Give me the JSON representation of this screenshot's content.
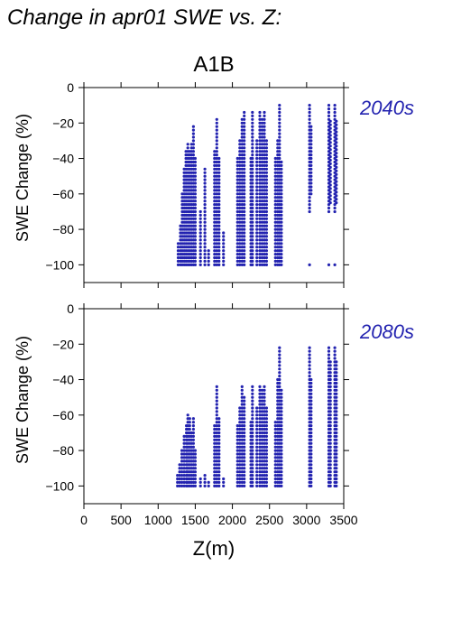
{
  "figure": {
    "title": "Change in apr01 SWE vs. Z:",
    "scenario": "A1B",
    "xlabel": "Z(m)",
    "ylabel": "SWE Change (%)",
    "series_color": "#2323b0"
  },
  "chart_data": [
    {
      "type": "scatter",
      "period": "2040s",
      "xlabel": "",
      "ylabel": "SWE Change (%)",
      "xlim": [
        0,
        3500
      ],
      "ylim": [
        -110,
        0
      ],
      "yticks": [
        0,
        -20,
        -40,
        -60,
        -80,
        -100
      ],
      "xticks": [
        0,
        500,
        1000,
        1500,
        2000,
        2500,
        3000,
        3500
      ],
      "grid": false,
      "columns": [
        {
          "x": 1270,
          "min": -100,
          "max": -88
        },
        {
          "x": 1300,
          "min": -100,
          "max": -78
        },
        {
          "x": 1325,
          "min": -100,
          "max": -60
        },
        {
          "x": 1350,
          "min": -100,
          "max": -45
        },
        {
          "x": 1375,
          "min": -100,
          "max": -35
        },
        {
          "x": 1400,
          "min": -100,
          "max": -32
        },
        {
          "x": 1425,
          "min": -100,
          "max": -35
        },
        {
          "x": 1450,
          "min": -100,
          "max": -32
        },
        {
          "x": 1475,
          "min": -100,
          "max": -22
        },
        {
          "x": 1500,
          "min": -100,
          "max": -40
        },
        {
          "x": 1570,
          "min": -100,
          "max": -70
        },
        {
          "x": 1630,
          "min": -100,
          "max": -45
        },
        {
          "x": 1680,
          "min": -100,
          "max": -92
        },
        {
          "x": 1760,
          "min": -100,
          "max": -35
        },
        {
          "x": 1790,
          "min": -100,
          "max": -18
        },
        {
          "x": 1820,
          "min": -100,
          "max": -40
        },
        {
          "x": 1880,
          "min": -100,
          "max": -82
        },
        {
          "x": 2070,
          "min": -100,
          "max": -40
        },
        {
          "x": 2100,
          "min": -100,
          "max": -30
        },
        {
          "x": 2130,
          "min": -100,
          "max": -18
        },
        {
          "x": 2160,
          "min": -100,
          "max": -14
        },
        {
          "x": 2250,
          "min": -100,
          "max": -40
        },
        {
          "x": 2270,
          "min": -100,
          "max": -14
        },
        {
          "x": 2330,
          "min": -100,
          "max": -30
        },
        {
          "x": 2370,
          "min": -100,
          "max": -14
        },
        {
          "x": 2400,
          "min": -100,
          "max": -18
        },
        {
          "x": 2430,
          "min": -100,
          "max": -14
        },
        {
          "x": 2460,
          "min": -100,
          "max": -30
        },
        {
          "x": 2580,
          "min": -100,
          "max": -40
        },
        {
          "x": 2610,
          "min": -100,
          "max": -30
        },
        {
          "x": 2635,
          "min": -100,
          "max": -10
        },
        {
          "x": 2660,
          "min": -100,
          "max": -42
        },
        {
          "x": 3040,
          "min": -70,
          "max": -10
        },
        {
          "x": 3060,
          "min": -60,
          "max": -22
        },
        {
          "x": 3300,
          "min": -70,
          "max": -10
        },
        {
          "x": 3320,
          "min": -65,
          "max": -18
        },
        {
          "x": 3380,
          "min": -70,
          "max": -10
        },
        {
          "x": 3400,
          "min": -65,
          "max": -18
        }
      ],
      "points": [
        [
          3040,
          -100
        ],
        [
          3300,
          -100
        ],
        [
          3380,
          -100
        ]
      ]
    },
    {
      "type": "scatter",
      "period": "2080s",
      "xlabel": "Z(m)",
      "ylabel": "SWE Change (%)",
      "xlim": [
        0,
        3500
      ],
      "ylim": [
        -110,
        0
      ],
      "yticks": [
        0,
        -20,
        -40,
        -60,
        -80,
        -100
      ],
      "xticks": [
        0,
        500,
        1000,
        1500,
        2000,
        2500,
        3000,
        3500
      ],
      "grid": false,
      "columns": [
        {
          "x": 1260,
          "min": -100,
          "max": -94
        },
        {
          "x": 1290,
          "min": -100,
          "max": -88
        },
        {
          "x": 1320,
          "min": -100,
          "max": -80
        },
        {
          "x": 1350,
          "min": -100,
          "max": -72
        },
        {
          "x": 1380,
          "min": -100,
          "max": -65
        },
        {
          "x": 1400,
          "min": -100,
          "max": -60
        },
        {
          "x": 1425,
          "min": -100,
          "max": -62
        },
        {
          "x": 1450,
          "min": -100,
          "max": -70
        },
        {
          "x": 1475,
          "min": -100,
          "max": -62
        },
        {
          "x": 1500,
          "min": -100,
          "max": -80
        },
        {
          "x": 1570,
          "min": -100,
          "max": -96
        },
        {
          "x": 1630,
          "min": -100,
          "max": -94
        },
        {
          "x": 1680,
          "min": -100,
          "max": -98
        },
        {
          "x": 1760,
          "min": -100,
          "max": -65
        },
        {
          "x": 1790,
          "min": -100,
          "max": -43
        },
        {
          "x": 1820,
          "min": -100,
          "max": -62
        },
        {
          "x": 1880,
          "min": -100,
          "max": -96
        },
        {
          "x": 2070,
          "min": -100,
          "max": -65
        },
        {
          "x": 2100,
          "min": -100,
          "max": -55
        },
        {
          "x": 2130,
          "min": -100,
          "max": -43
        },
        {
          "x": 2160,
          "min": -100,
          "max": -50
        },
        {
          "x": 2250,
          "min": -100,
          "max": -64
        },
        {
          "x": 2270,
          "min": -100,
          "max": -43
        },
        {
          "x": 2330,
          "min": -100,
          "max": -56
        },
        {
          "x": 2370,
          "min": -100,
          "max": -43
        },
        {
          "x": 2400,
          "min": -100,
          "max": -45
        },
        {
          "x": 2430,
          "min": -100,
          "max": -43
        },
        {
          "x": 2460,
          "min": -100,
          "max": -56
        },
        {
          "x": 2580,
          "min": -100,
          "max": -64
        },
        {
          "x": 2610,
          "min": -100,
          "max": -40
        },
        {
          "x": 2635,
          "min": -100,
          "max": -21
        },
        {
          "x": 2660,
          "min": -100,
          "max": -46
        },
        {
          "x": 3040,
          "min": -100,
          "max": -21
        },
        {
          "x": 3060,
          "min": -100,
          "max": -40
        },
        {
          "x": 3300,
          "min": -100,
          "max": -21
        },
        {
          "x": 3320,
          "min": -100,
          "max": -30
        },
        {
          "x": 3380,
          "min": -100,
          "max": -21
        },
        {
          "x": 3400,
          "min": -100,
          "max": -30
        }
      ],
      "points": []
    }
  ]
}
